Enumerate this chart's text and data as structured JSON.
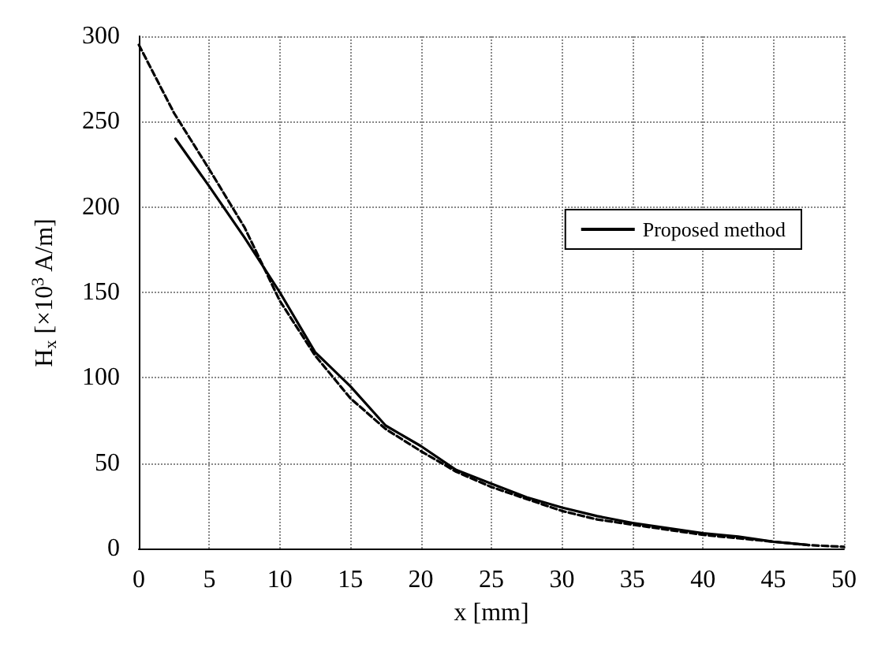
{
  "chart_data": {
    "type": "line",
    "xlabel": "x [mm]",
    "ylabel": "H$_{x}$ [×10$^{3}$ A/m]",
    "xlim": [
      0,
      50
    ],
    "xticks": [
      0,
      5,
      10,
      15,
      20,
      25,
      30,
      35,
      40,
      45,
      50
    ],
    "ylim": [
      0,
      300
    ],
    "yticks": [
      0,
      50,
      100,
      150,
      200,
      250,
      300
    ],
    "grid": true,
    "legend": "top right",
    "marker": "none",
    "series": [
      {
        "name": "Proposed method",
        "color": "#000000",
        "line_style": "solid",
        "x": [
          2.6,
          5,
          7.5,
          10,
          12.5,
          15,
          17.5,
          20,
          22.5,
          25,
          27.5,
          30,
          32.5,
          35,
          37.5,
          40,
          42.5,
          45,
          47.5
        ],
        "values": [
          240,
          212,
          182,
          150,
          115,
          95,
          72,
          60,
          46,
          38,
          30,
          24,
          19,
          15,
          12,
          9,
          7,
          4,
          2
        ]
      },
      {
        "color": "#000000",
        "line_style": "dashed",
        "x": [
          0,
          2.5,
          5,
          7.5,
          10,
          12.5,
          15,
          17.5,
          20,
          22.5,
          25,
          27.5,
          30,
          32.5,
          35,
          37.5,
          40,
          42.5,
          45,
          47.5,
          50
        ],
        "values": [
          295,
          255,
          222,
          188,
          145,
          113,
          88,
          70,
          57,
          45,
          36,
          29,
          22,
          17,
          14,
          11,
          8,
          6,
          4,
          2,
          1
        ]
      }
    ]
  }
}
